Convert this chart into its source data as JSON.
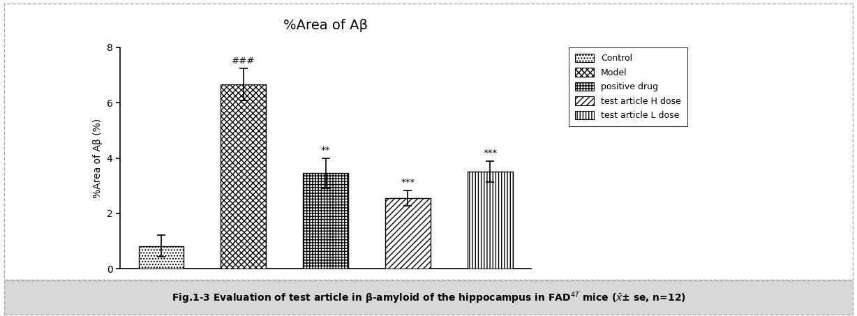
{
  "title": "%Area of Aβ",
  "ylabel": "%Area of Aβ (%)",
  "categories": [
    "Control",
    "Model",
    "positive drug",
    "test article H dose",
    "test article L dose"
  ],
  "values": [
    0.82,
    6.65,
    3.45,
    2.55,
    3.5
  ],
  "errors": [
    0.38,
    0.58,
    0.55,
    0.28,
    0.38
  ],
  "annotations": [
    "",
    "###",
    "**",
    "***",
    "***"
  ],
  "ylim": [
    0,
    8
  ],
  "yticks": [
    0,
    2,
    4,
    6,
    8
  ],
  "legend_labels": [
    "Control",
    "Model",
    "positive drug",
    "test article H dose",
    "test article L dose"
  ],
  "hatch_patterns": [
    "....",
    "xxxx",
    "++++",
    "////",
    "||||"
  ],
  "bar_width": 0.55,
  "figsize": [
    12.28,
    4.53
  ],
  "dpi": 100,
  "outer_border_color": "#aaaaaa",
  "caption_bg_color": "#e0e0e0",
  "caption_text": "Fig.1-3 Evaluation of test article in β-amyloid of the hippocampus in FAD$^{4T}$ mice ($\\bar{x}$± se, n=12)"
}
